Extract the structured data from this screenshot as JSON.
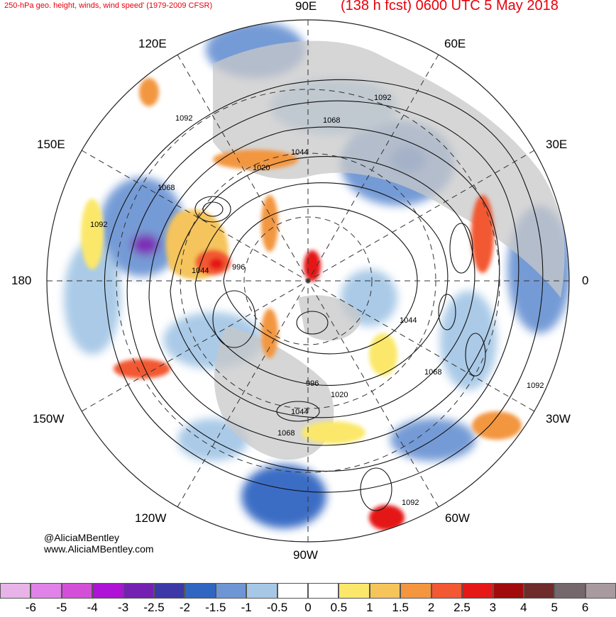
{
  "title_left": "250-hPa geo. height, winds, wind speed' (1979-2009 CFSR)",
  "title_right": "(138 h fcst) 0600 UTC 5 May 2018",
  "credit": {
    "line1": "@AliciaMBentley",
    "line2": "www.AliciaMBentley.com"
  },
  "longitude_labels": {
    "lon_90e": "90E",
    "lon_60e": "60E",
    "lon_120e": "120E",
    "lon_30e": "30E",
    "lon_150e": "150E",
    "lon_180": "180",
    "lon_0": "0",
    "lon_150w": "150W",
    "lon_30w": "30W",
    "lon_120w": "120W",
    "lon_60w": "60W",
    "lon_90w": "90W"
  },
  "contour_labels": {
    "c1": "1092",
    "c2": "1092",
    "c3": "1092",
    "c4": "1092",
    "c5": "1092",
    "c6": "1068",
    "c7": "1068",
    "c8": "1068",
    "c9": "1068",
    "c10": "1044",
    "c11": "1044",
    "c12": "1044",
    "c13": "1044",
    "c14": "1020",
    "c15": "1020",
    "c16": "996",
    "c17": "996"
  },
  "colorbar": {
    "ticks": [
      "-6",
      "-5",
      "-4",
      "-3",
      "-2.5",
      "-2",
      "-1.5",
      "-1",
      "-0.5",
      "0",
      "0.5",
      "1",
      "1.5",
      "2",
      "2.5",
      "3",
      "4",
      "5",
      "6"
    ],
    "colors": [
      "#e8b3e8",
      "#e082e8",
      "#d44fd8",
      "#ad12d6",
      "#7421b3",
      "#3c38a8",
      "#3066c2",
      "#6e96d4",
      "#a6c8e6",
      "#ffffff",
      "#ffffff",
      "#fbe86a",
      "#f5c45b",
      "#f3963f",
      "#f25831",
      "#e51717",
      "#a10b0b",
      "#6f2a2a",
      "#74686c",
      "#a89a9e"
    ]
  }
}
